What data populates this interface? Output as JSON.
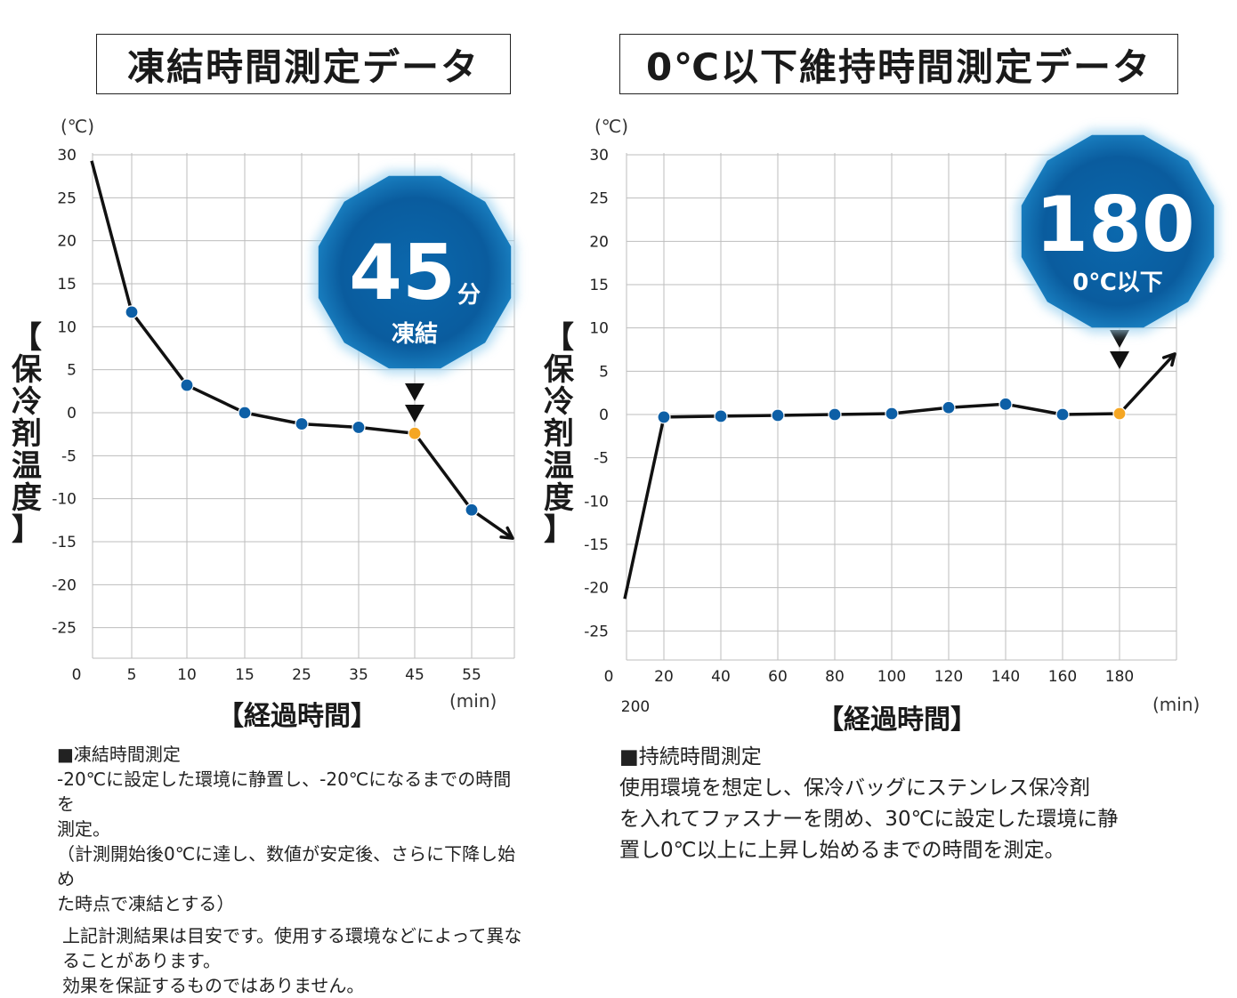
{
  "titles": {
    "left": "凍結時間測定データ",
    "right": "0℃以下維持時間測定データ"
  },
  "axis": {
    "y_unit": "(℃)",
    "x_unit": "(min)",
    "y_title_chars": [
      "【",
      "保",
      "冷",
      "剤",
      "温",
      "度",
      "】"
    ],
    "x_title": "【経過時間】"
  },
  "badges": {
    "left": {
      "number": "45",
      "suffix": "分",
      "label": "凍結"
    },
    "right": {
      "number": "180",
      "label": "0℃以下"
    }
  },
  "notes": {
    "left": [
      "■凍結時間測定",
      "-20℃に設定した環境に静置し、-20℃になるまでの時間を",
      "測定。",
      "（計測開始後0℃に達し、数値が安定後、さらに下降し始め",
      "た時点で凍結とする）",
      "上記計測結果は目安です。使用する環境などによって異な",
      "ることがあります。",
      "効果を保証するものではありません。"
    ],
    "right": [
      "■持続時間測定",
      "使用環境を想定し、保冷バッグにステンレス保冷剤",
      "を入れてファスナーを閉め、30℃に設定した環境に静",
      "置し0℃以上に上昇し始めるまでの時間を測定。"
    ]
  },
  "colors": {
    "point": "#0d5fa6",
    "highlight": "#f5a623",
    "line": "#111111",
    "grid": "#bdbdbd",
    "badge": "#0a5c9e"
  },
  "chart_data": [
    {
      "type": "line",
      "title": "凍結時間測定データ",
      "xlabel": "【経過時間】",
      "ylabel": "【保冷剤温度】",
      "y_ticks": [
        30,
        25,
        20,
        15,
        10,
        5,
        0,
        -5,
        -10,
        -15,
        -20,
        -25
      ],
      "x_tick_labels": [
        "0",
        "5",
        "10",
        "15",
        "25",
        "35",
        "45",
        "55"
      ],
      "ylim": [
        -28,
        30
      ],
      "grid": true,
      "points": [
        {
          "x": "0",
          "y": 29.3,
          "marker": false
        },
        {
          "x": "5",
          "y": 11.7,
          "marker": true
        },
        {
          "x": "10",
          "y": 3.2,
          "marker": true
        },
        {
          "x": "15",
          "y": 0.0,
          "marker": true
        },
        {
          "x": "25",
          "y": -1.3,
          "marker": true
        },
        {
          "x": "35",
          "y": -1.7,
          "marker": true
        },
        {
          "x": "45",
          "y": -2.4,
          "marker": true,
          "highlight": true
        },
        {
          "x": "55",
          "y": -11.3,
          "marker": true
        }
      ],
      "trend": "down"
    },
    {
      "type": "line",
      "title": "0℃以下維持時間測定データ",
      "xlabel": "【経過時間】",
      "ylabel": "【保冷剤温度】",
      "y_ticks": [
        30,
        25,
        20,
        15,
        10,
        5,
        0,
        -5,
        -10,
        -15,
        -20,
        -25
      ],
      "x_tick_labels": [
        "0",
        "20",
        "40",
        "60",
        "80",
        "100",
        "120",
        "140",
        "160",
        "180",
        "200"
      ],
      "ylim": [
        -28,
        30
      ],
      "grid": true,
      "points": [
        {
          "x": "0",
          "y": -21.3,
          "marker": false
        },
        {
          "x": "20",
          "y": -0.3,
          "marker": true
        },
        {
          "x": "40",
          "y": -0.2,
          "marker": true
        },
        {
          "x": "60",
          "y": -0.1,
          "marker": true
        },
        {
          "x": "80",
          "y": 0.0,
          "marker": true
        },
        {
          "x": "100",
          "y": 0.1,
          "marker": true
        },
        {
          "x": "120",
          "y": 0.8,
          "marker": true
        },
        {
          "x": "140",
          "y": 1.2,
          "marker": true
        },
        {
          "x": "160",
          "y": 0.0,
          "marker": true
        },
        {
          "x": "180",
          "y": 0.1,
          "marker": true,
          "highlight": true
        }
      ],
      "trend": "up"
    }
  ]
}
